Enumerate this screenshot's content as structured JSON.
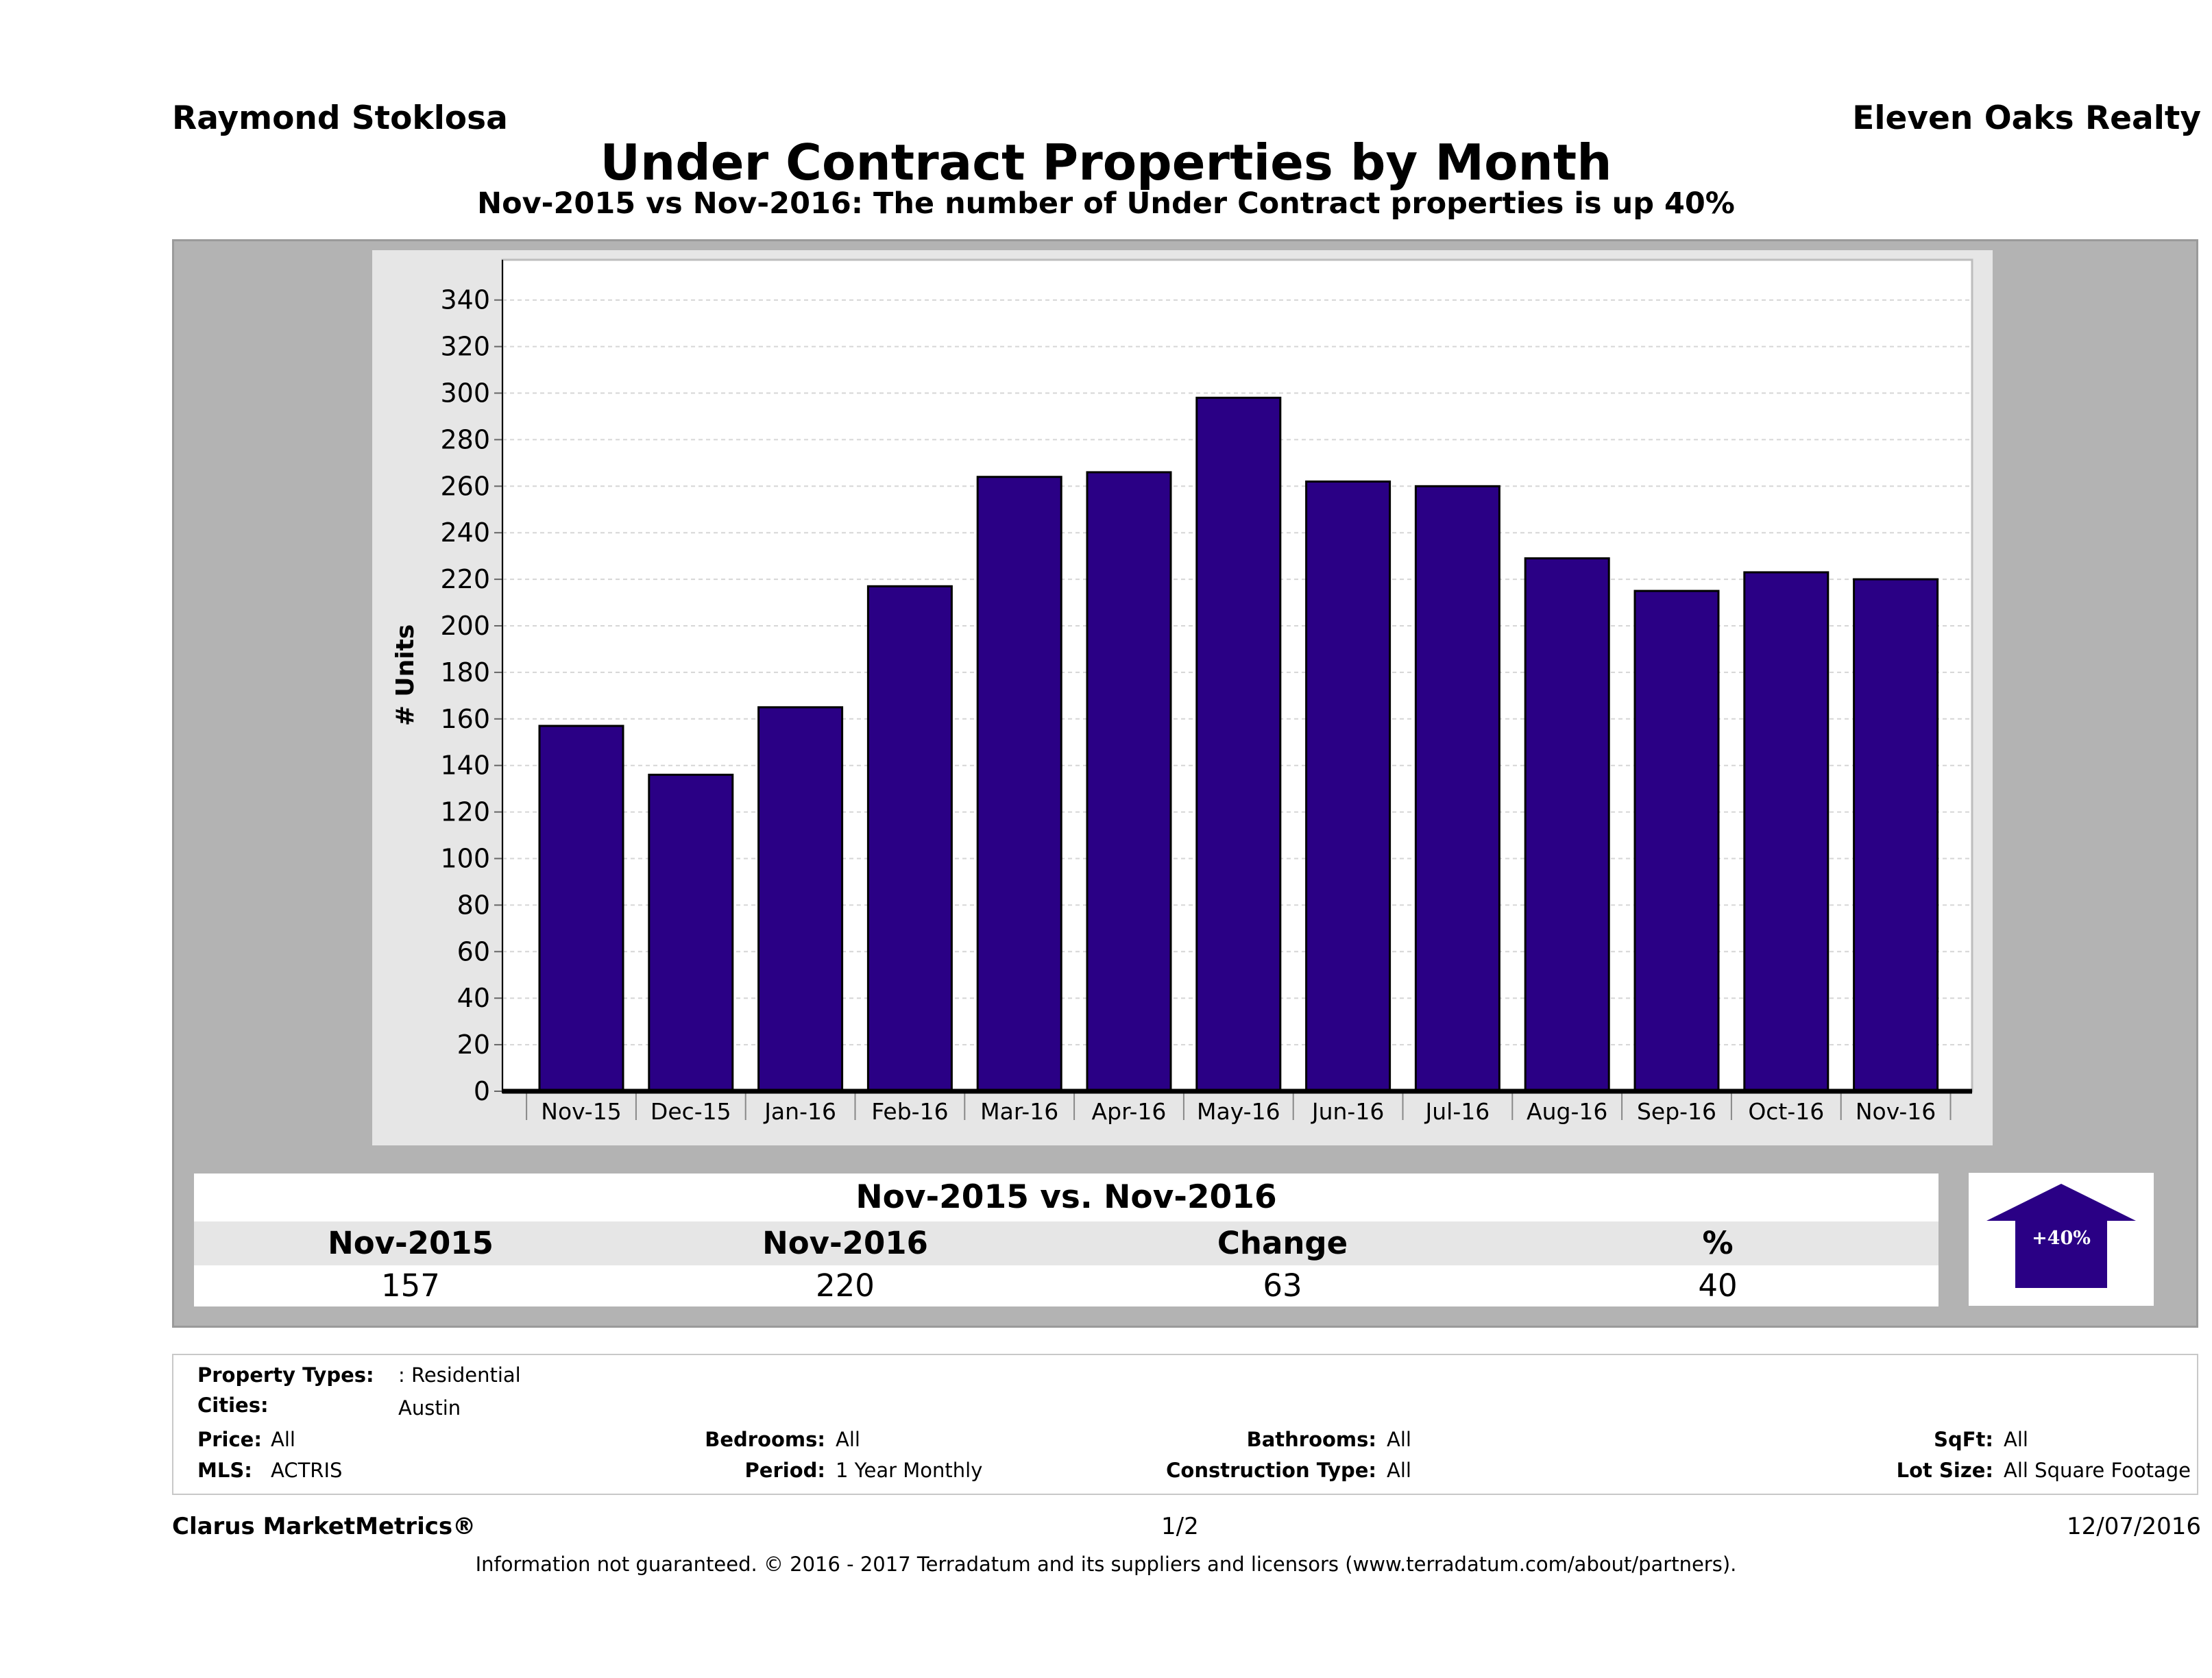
{
  "header": {
    "agent": "Raymond Stoklosa",
    "company": "Eleven Oaks Realty",
    "title": "Under Contract Properties by Month",
    "subtitle": "Nov-2015 vs Nov-2016: The number of Under Contract  properties is up 40%"
  },
  "chart_data": {
    "type": "bar",
    "categories": [
      "Nov-15",
      "Dec-15",
      "Jan-16",
      "Feb-16",
      "Mar-16",
      "Apr-16",
      "May-16",
      "Jun-16",
      "Jul-16",
      "Aug-16",
      "Sep-16",
      "Oct-16",
      "Nov-16"
    ],
    "values": [
      157,
      136,
      165,
      217,
      264,
      266,
      298,
      262,
      260,
      229,
      215,
      223,
      220
    ],
    "ylabel": "# Units",
    "ylim": [
      0,
      350
    ],
    "yticks": [
      0,
      20,
      40,
      60,
      80,
      100,
      120,
      140,
      160,
      180,
      200,
      220,
      240,
      260,
      280,
      300,
      320,
      340
    ],
    "bar_color": "#2a0085",
    "grid": true
  },
  "comparison": {
    "title": "Nov-2015 vs. Nov-2016",
    "headers": [
      "Nov-2015",
      "Nov-2016",
      "Change",
      "%"
    ],
    "values": [
      "157",
      "220",
      "63",
      "40"
    ],
    "badge": "+40%",
    "badge_color": "#2a0085"
  },
  "filters": {
    "property_types_label": "Property Types:",
    "property_types_value": ": Residential",
    "cities_label": "Cities:",
    "cities_value": "Austin",
    "price_label": "Price:",
    "price_value": "All",
    "mls_label": "MLS:",
    "mls_value": "ACTRIS",
    "bedrooms_label": "Bedrooms:",
    "bedrooms_value": "All",
    "period_label": "Period:",
    "period_value": "1 Year Monthly",
    "bathrooms_label": "Bathrooms:",
    "bathrooms_value": "All",
    "construction_label": "Construction Type:",
    "construction_value": "All",
    "sqft_label": "SqFt:",
    "sqft_value": "All",
    "lot_label": "Lot Size:",
    "lot_value": "All Square Footage"
  },
  "footer": {
    "brand": "Clarus MarketMetrics®",
    "page": "1/2",
    "date": "12/07/2016",
    "note": "Information not guaranteed. © 2016 - 2017 Terradatum and its suppliers and licensors (www.terradatum.com/about/partners)."
  }
}
